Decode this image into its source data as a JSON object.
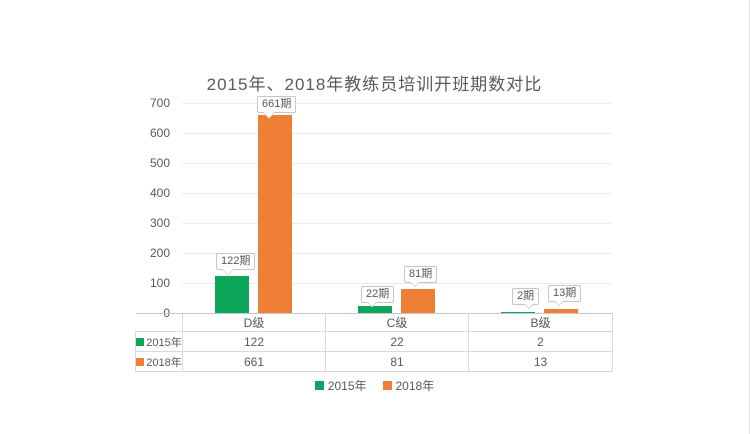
{
  "chart_data": {
    "type": "bar",
    "title": "2015年、2018年教练员培训开班期数对比",
    "categories": [
      "D级",
      "C级",
      "B级"
    ],
    "series": [
      {
        "name": "2015年",
        "color": "#0ea65a",
        "values": [
          122,
          22,
          2
        ]
      },
      {
        "name": "2018年",
        "color": "#ee7f35",
        "values": [
          661,
          81,
          13
        ]
      }
    ],
    "data_labels": [
      [
        "122期",
        "22期",
        "2期"
      ],
      [
        "661期",
        "81期",
        "13期"
      ]
    ],
    "ylim": [
      0,
      700
    ],
    "ytick_labels": [
      "700",
      "600",
      "500",
      "400",
      "300",
      "200",
      "100",
      "0"
    ],
    "grid": true,
    "legend_position": "bottom",
    "has_data_table": true,
    "colors": {
      "series_2015": "#0ea65a",
      "series_2018": "#ee7f35",
      "text": "#595959",
      "gridline": "#ebebeb",
      "table_border": "#d9d9d9"
    }
  }
}
